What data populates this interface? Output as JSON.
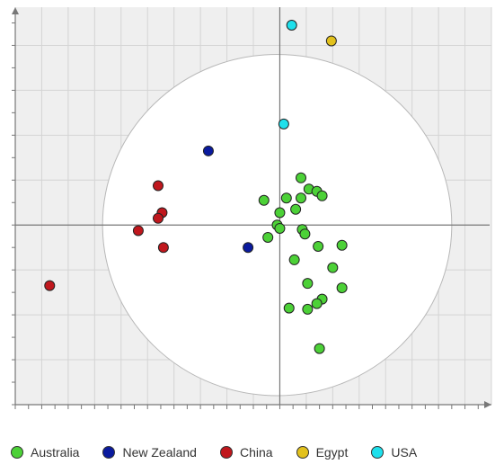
{
  "chart_data": {
    "type": "scatter",
    "title": "",
    "xlabel": "",
    "ylabel": "",
    "xlim": [
      -10,
      8
    ],
    "ylim": [
      -8,
      9.7
    ],
    "grid": true,
    "legend_position": "bottom",
    "confidence_ellipse": {
      "cx": -0.1,
      "cy": 0,
      "rx": 6.6,
      "ry": 7.6
    },
    "series": [
      {
        "name": "Australia",
        "color": "#4cd137",
        "points": [
          [
            0.8,
            2.1
          ],
          [
            1.1,
            1.6
          ],
          [
            1.4,
            1.5
          ],
          [
            1.6,
            1.3
          ],
          [
            0.8,
            1.2
          ],
          [
            0.25,
            1.2
          ],
          [
            -0.6,
            1.1
          ],
          [
            0.6,
            0.7
          ],
          [
            0.0,
            0.55
          ],
          [
            -0.1,
            0.0
          ],
          [
            0.0,
            -0.15
          ],
          [
            0.85,
            -0.2
          ],
          [
            0.95,
            -0.4
          ],
          [
            -0.45,
            -0.55
          ],
          [
            1.45,
            -0.95
          ],
          [
            2.35,
            -0.9
          ],
          [
            0.55,
            -1.55
          ],
          [
            2.0,
            -1.9
          ],
          [
            1.05,
            -2.6
          ],
          [
            2.35,
            -2.8
          ],
          [
            1.6,
            -3.3
          ],
          [
            1.4,
            -3.5
          ],
          [
            0.35,
            -3.7
          ],
          [
            1.05,
            -3.75
          ],
          [
            1.5,
            -5.5
          ]
        ]
      },
      {
        "name": "New Zealand",
        "color": "#0a1a9e",
        "points": [
          [
            -2.7,
            3.3
          ],
          [
            -1.2,
            -1.0
          ]
        ]
      },
      {
        "name": "China",
        "color": "#c0171d",
        "points": [
          [
            -4.6,
            1.75
          ],
          [
            -4.45,
            0.55
          ],
          [
            -4.6,
            0.3
          ],
          [
            -5.35,
            -0.25
          ],
          [
            -4.4,
            -1.0
          ],
          [
            -8.7,
            -2.7
          ]
        ]
      },
      {
        "name": "Egypt",
        "color": "#e2c11c",
        "points": [
          [
            1.95,
            8.2
          ]
        ]
      },
      {
        "name": "USA",
        "color": "#1ee0ec",
        "points": [
          [
            0.45,
            8.9
          ],
          [
            0.15,
            4.5
          ]
        ]
      }
    ]
  }
}
